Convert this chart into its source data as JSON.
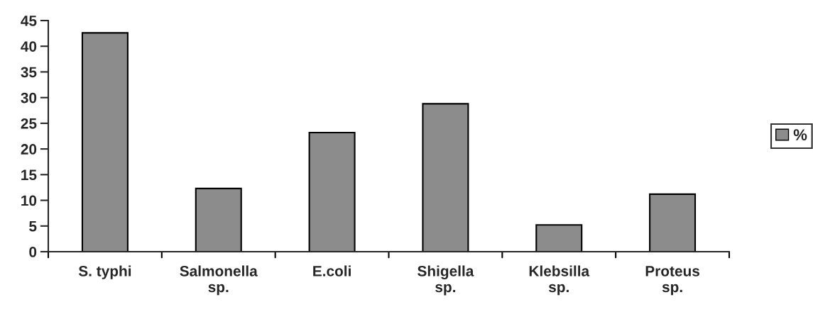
{
  "chart_data": {
    "type": "bar",
    "categories": [
      "S. typhi",
      "Salmonella\nsp.",
      "E.coli",
      "Shigella\nsp.",
      "Klebsilla\nsp.",
      "Proteus\nsp."
    ],
    "series": [
      {
        "name": "%",
        "color": "#8c8c8c",
        "values": [
          42.6,
          12.3,
          23.2,
          28.8,
          5.2,
          11.2
        ]
      }
    ],
    "ylim": [
      0,
      45
    ],
    "yticks": [
      0,
      5,
      10,
      15,
      20,
      25,
      30,
      35,
      40,
      45
    ],
    "grid": false,
    "legend": "right"
  }
}
